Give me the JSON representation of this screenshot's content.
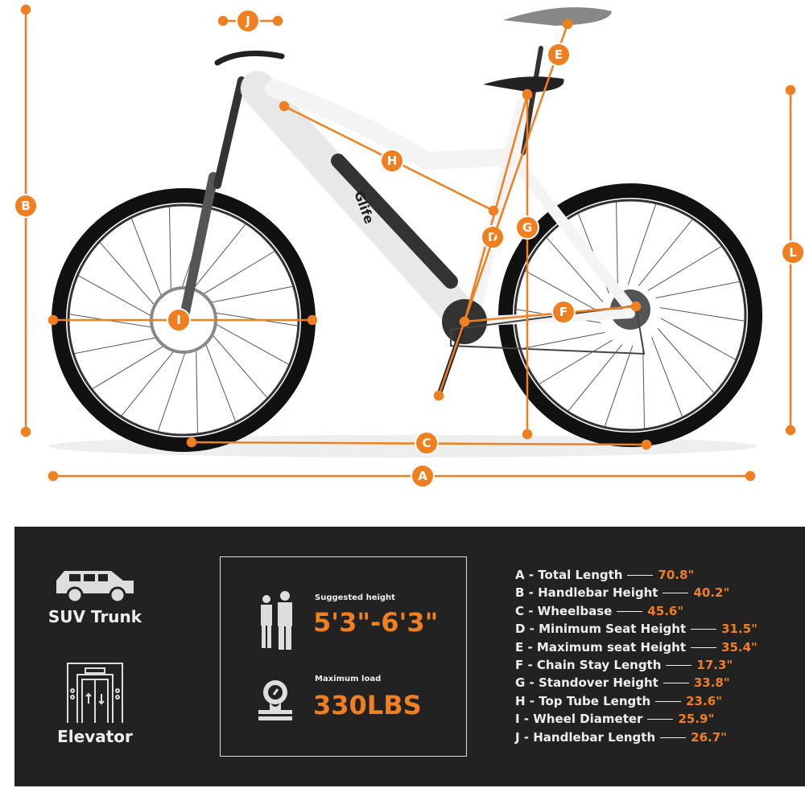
{
  "brand": "Glife",
  "colors": {
    "accent": "#f07f1f",
    "panel": "#222222"
  },
  "dimension_labels": [
    "A",
    "B",
    "C",
    "D",
    "E",
    "F",
    "G",
    "H",
    "I",
    "J",
    "L"
  ],
  "features": [
    {
      "icon": "suv-icon",
      "label": "SUV Trunk"
    },
    {
      "icon": "elevator-icon",
      "label": "Elevator"
    }
  ],
  "rider": {
    "height_label": "Suggested height",
    "height_value": "5'3\"-6'3\"",
    "load_label": "Maximum load",
    "load_value": "330LBS"
  },
  "specs": [
    {
      "key": "A - Total Length",
      "value": "70.8\""
    },
    {
      "key": "B - Handlebar Height",
      "value": "40.2\""
    },
    {
      "key": "C - Wheelbase",
      "value": "45.6\""
    },
    {
      "key": "D - Minimum Seat Height",
      "value": "31.5\""
    },
    {
      "key": "E - Maximum seat Height",
      "value": "35.4\""
    },
    {
      "key": "F - Chain Stay Length",
      "value": "17.3\""
    },
    {
      "key": "G - Standover Height",
      "value": "33.8\""
    },
    {
      "key": "H - Top Tube Length",
      "value": "23.6\""
    },
    {
      "key": "I -  Wheel Diameter",
      "value": "25.9\""
    },
    {
      "key": "J - Handlebar Length",
      "value": "26.7\""
    }
  ]
}
